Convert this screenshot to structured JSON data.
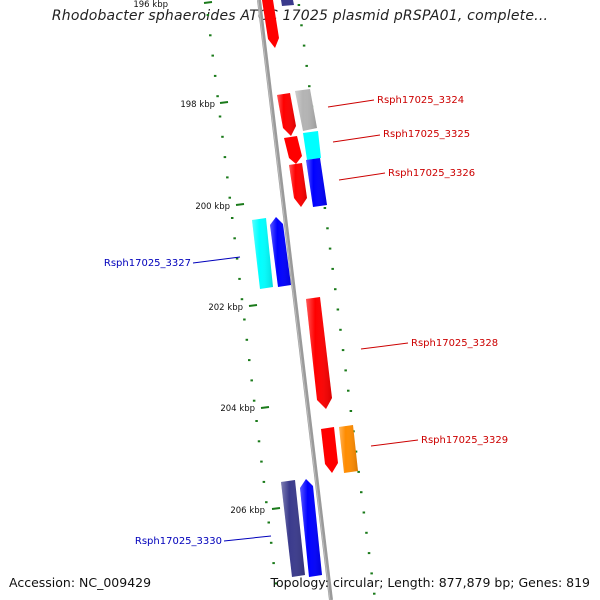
{
  "title": "Rhodobacter sphaeroides ATCC 17025 plasmid pRSPA01, complete...",
  "accession": "Accession: NC_009429",
  "summary": "Topology: circular; Length: 877,879 bp; Genes: 819",
  "ticks": [
    {
      "label": "196 kbp",
      "kbp": 196
    },
    {
      "label": "198 kbp",
      "kbp": 198
    },
    {
      "label": "200 kbp",
      "kbp": 200
    },
    {
      "label": "202 kbp",
      "kbp": 202
    },
    {
      "label": "204 kbp",
      "kbp": 204
    },
    {
      "label": "206 kbp",
      "kbp": 206
    }
  ],
  "genes": [
    {
      "label": "Rsph17025_3324",
      "color": "#ff0000",
      "label_color": "#cc0000"
    },
    {
      "label": "Rsph17025_3325",
      "color": "#ff0000",
      "label_color": "#cc0000"
    },
    {
      "label": "Rsph17025_3326",
      "color": "#ff0000",
      "label_color": "#cc0000"
    },
    {
      "label": "Rsph17025_3327",
      "color": "#00ffff",
      "label_color": "#0000bb"
    },
    {
      "label": "Rsph17025_3328",
      "color": "#ff0000",
      "label_color": "#cc0000"
    },
    {
      "label": "Rsph17025_3329",
      "color": "#ff8c00",
      "label_color": "#cc0000"
    },
    {
      "label": "Rsph17025_3330",
      "color": "#3a3a8c",
      "label_color": "#0000bb"
    }
  ],
  "colors": {
    "backbone": "#888888",
    "tick_mark": "#1a7a1a",
    "red": "#ff0000",
    "blue": "#0000ff",
    "cyan": "#00ffff",
    "grey": "#b4b4b4",
    "navy": "#3a3a8c",
    "orange": "#ff8c00"
  }
}
